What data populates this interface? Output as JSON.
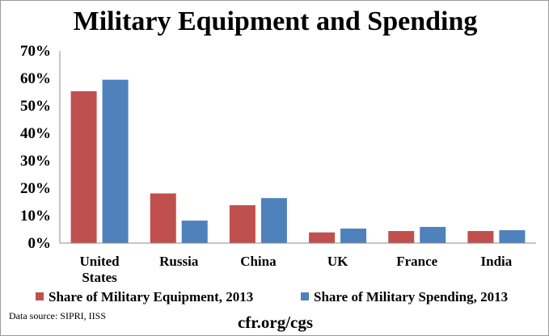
{
  "colors": {
    "equipment": "#C0504D",
    "spending": "#4F81BD"
  },
  "chart_data": {
    "type": "bar",
    "title": "Military Equipment and Spending",
    "categories": [
      [
        "United",
        "States"
      ],
      [
        "Russia"
      ],
      [
        "China"
      ],
      [
        "UK"
      ],
      [
        "France"
      ],
      [
        "India"
      ]
    ],
    "series": [
      {
        "name": "Share of Military Equipment, 2013",
        "values": [
          55.3,
          18.1,
          13.8,
          3.9,
          4.4,
          4.4
        ]
      },
      {
        "name": "Share of Military Spending, 2013",
        "values": [
          59.5,
          8.2,
          16.4,
          5.3,
          5.9,
          4.7
        ]
      }
    ],
    "ylim": [
      0,
      70
    ],
    "yticks": [
      "0%",
      "10%",
      "20%",
      "30%",
      "40%",
      "50%",
      "60%",
      "70%"
    ],
    "grid": false,
    "legend_position": "bottom"
  },
  "footer": {
    "source": "Data source: SIPRI, IISS",
    "credit": "cfr.org/cgs"
  }
}
